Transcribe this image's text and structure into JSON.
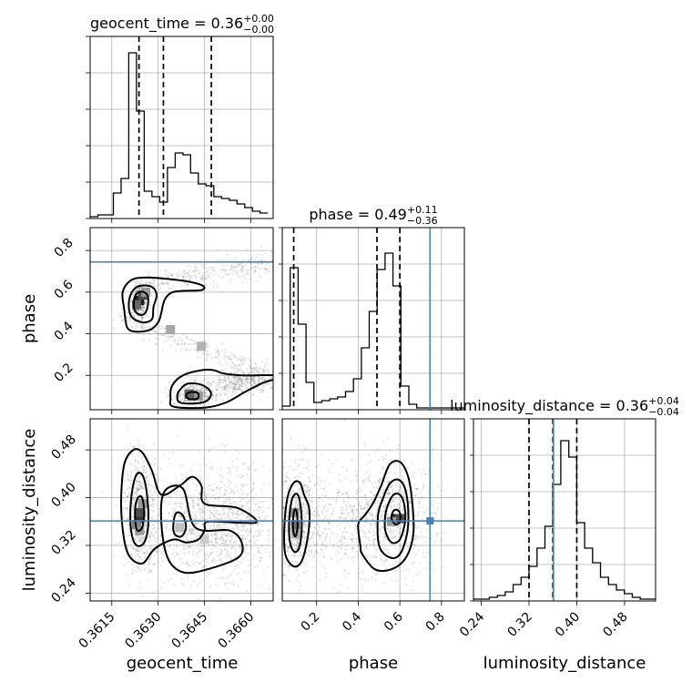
{
  "chart_data": {
    "type": "corner",
    "params": [
      "geocent_time",
      "phase",
      "luminosity_distance"
    ],
    "axis_labels": [
      "geocent_time",
      "phase",
      "luminosity_distance"
    ],
    "ranges": {
      "geocent_time": [
        0.3608,
        0.36672
      ],
      "phase": [
        0.035,
        0.91
      ],
      "luminosity_distance": [
        0.227,
        0.532
      ]
    },
    "ticks": {
      "geocent_time": [
        "0.3615",
        "0.3630",
        "0.3645",
        "0.3660"
      ],
      "phase": [
        "0.2",
        "0.4",
        "0.6",
        "0.8"
      ],
      "luminosity_distance": [
        "0.24",
        "0.32",
        "0.40",
        "0.48"
      ]
    },
    "titles": [
      {
        "param": "geocent_time",
        "prefix": "geocent_time = ",
        "median": "0.36",
        "plus": "+0.00",
        "minus": "−0.00"
      },
      {
        "param": "phase",
        "prefix": "phase = ",
        "median": "0.49",
        "plus": "+0.11",
        "minus": "−0.36"
      },
      {
        "param": "luminosity_distance",
        "prefix": "luminosity_distance = ",
        "median": "0.36",
        "plus": "+0.04",
        "minus": "−0.04"
      }
    ],
    "quantiles": {
      "geocent_time": [
        0.36238,
        0.36317,
        0.36472
      ],
      "phase": [
        0.09,
        0.49,
        0.6
      ],
      "luminosity_distance": [
        0.32,
        0.36,
        0.4
      ]
    },
    "truths": {
      "phase": 0.745,
      "luminosity_distance": 0.361
    },
    "histograms": {
      "geocent_time": {
        "edges_start": 0.3608,
        "bin_width": 0.00025,
        "counts": [
          0.01,
          0.02,
          0.02,
          0.14,
          0.22,
          0.91,
          0.59,
          0.15,
          0.12,
          0.09,
          0.28,
          0.36,
          0.35,
          0.25,
          0.19,
          0.18,
          0.12,
          0.11,
          0.1,
          0.08,
          0.06,
          0.04,
          0.03
        ]
      },
      "phase": {
        "edges_start": 0.035,
        "bin_width": 0.038,
        "counts": [
          0.02,
          0.78,
          0.47,
          0.15,
          0.04,
          0.05,
          0.06,
          0.07,
          0.1,
          0.17,
          0.34,
          0.54,
          0.77,
          0.86,
          0.68,
          0.13,
          0.03,
          0.01,
          0.01,
          0.01,
          0.01,
          0.01,
          0.01
        ]
      },
      "luminosity_distance": {
        "edges_start": 0.227,
        "bin_width": 0.0133,
        "counts": [
          0.01,
          0.01,
          0.02,
          0.03,
          0.05,
          0.09,
          0.13,
          0.19,
          0.29,
          0.41,
          0.64,
          0.88,
          0.79,
          0.43,
          0.29,
          0.21,
          0.13,
          0.09,
          0.06,
          0.04,
          0.02,
          0.01,
          0.01
        ]
      }
    },
    "contours_2d": {
      "phase_vs_geocent_time": [
        [
          [
            0.36225,
            0.51
          ],
          [
            0.36245,
            0.49
          ],
          [
            0.36262,
            0.51
          ],
          [
            0.36268,
            0.57
          ],
          [
            0.36255,
            0.6
          ],
          [
            0.36232,
            0.595
          ],
          [
            0.36222,
            0.56
          ]
        ],
        [
          [
            0.36215,
            0.48
          ],
          [
            0.3625,
            0.455
          ],
          [
            0.3628,
            0.47
          ],
          [
            0.36285,
            0.53
          ],
          [
            0.36295,
            0.585
          ],
          [
            0.3628,
            0.625
          ],
          [
            0.3624,
            0.63
          ],
          [
            0.36215,
            0.6
          ],
          [
            0.36205,
            0.54
          ]
        ],
        [
          [
            0.362,
            0.43
          ],
          [
            0.3623,
            0.41
          ],
          [
            0.36275,
            0.42
          ],
          [
            0.363,
            0.455
          ],
          [
            0.3631,
            0.5
          ],
          [
            0.3632,
            0.56
          ],
          [
            0.3634,
            0.595
          ],
          [
            0.3637,
            0.605
          ],
          [
            0.3644,
            0.61
          ],
          [
            0.36445,
            0.63
          ],
          [
            0.364,
            0.65
          ],
          [
            0.3632,
            0.665
          ],
          [
            0.3625,
            0.67
          ],
          [
            0.3621,
            0.655
          ],
          [
            0.36185,
            0.6
          ],
          [
            0.3619,
            0.52
          ]
        ],
        [
          [
            0.36392,
            0.095
          ],
          [
            0.36405,
            0.085
          ],
          [
            0.36428,
            0.09
          ],
          [
            0.36428,
            0.115
          ],
          [
            0.36405,
            0.12
          ],
          [
            0.36392,
            0.11
          ]
        ],
        [
          [
            0.3637,
            0.07
          ],
          [
            0.3642,
            0.065
          ],
          [
            0.3646,
            0.08
          ],
          [
            0.3647,
            0.12
          ],
          [
            0.3644,
            0.155
          ],
          [
            0.36395,
            0.16
          ],
          [
            0.3637,
            0.13
          ],
          [
            0.36362,
            0.1
          ]
        ],
        [
          [
            0.3635,
            0.05
          ],
          [
            0.3645,
            0.045
          ],
          [
            0.3652,
            0.07
          ],
          [
            0.3658,
            0.12
          ],
          [
            0.3664,
            0.165
          ],
          [
            0.36672,
            0.18
          ],
          [
            0.36672,
            0.2
          ],
          [
            0.3657,
            0.2
          ],
          [
            0.3651,
            0.21
          ],
          [
            0.3648,
            0.225
          ],
          [
            0.3644,
            0.225
          ],
          [
            0.3638,
            0.2
          ],
          [
            0.36345,
            0.15
          ],
          [
            0.3634,
            0.09
          ]
        ]
      ],
      "luminosity_distance_vs_geocent_time": [
        [
          [
            0.36226,
            0.36
          ],
          [
            0.36233,
            0.345
          ],
          [
            0.36248,
            0.35
          ],
          [
            0.36255,
            0.375
          ],
          [
            0.36248,
            0.4
          ],
          [
            0.36235,
            0.4
          ],
          [
            0.36226,
            0.385
          ]
        ],
        [
          [
            0.36214,
            0.34
          ],
          [
            0.3623,
            0.32
          ],
          [
            0.36255,
            0.325
          ],
          [
            0.36268,
            0.355
          ],
          [
            0.36265,
            0.4
          ],
          [
            0.36252,
            0.435
          ],
          [
            0.36232,
            0.44
          ],
          [
            0.36217,
            0.415
          ],
          [
            0.3621,
            0.375
          ]
        ],
        [
          [
            0.3621,
            0.3
          ],
          [
            0.3625,
            0.29
          ],
          [
            0.3629,
            0.315
          ],
          [
            0.3635,
            0.33
          ],
          [
            0.3639,
            0.325
          ],
          [
            0.3643,
            0.33
          ],
          [
            0.3645,
            0.345
          ],
          [
            0.3646,
            0.36
          ],
          [
            0.3656,
            0.358
          ],
          [
            0.3662,
            0.36
          ],
          [
            0.36555,
            0.383
          ],
          [
            0.3645,
            0.39
          ],
          [
            0.3644,
            0.42
          ],
          [
            0.3641,
            0.435
          ],
          [
            0.3637,
            0.42
          ],
          [
            0.3631,
            0.405
          ],
          [
            0.3628,
            0.445
          ],
          [
            0.3625,
            0.475
          ],
          [
            0.3622,
            0.48
          ],
          [
            0.3619,
            0.455
          ],
          [
            0.3618,
            0.39
          ],
          [
            0.3619,
            0.33
          ]
        ],
        [
          [
            0.36352,
            0.34
          ],
          [
            0.36375,
            0.335
          ],
          [
            0.3639,
            0.35
          ],
          [
            0.3638,
            0.37
          ],
          [
            0.3636,
            0.375
          ],
          [
            0.3635,
            0.36
          ]
        ],
        [
          [
            0.3633,
            0.3
          ],
          [
            0.3638,
            0.275
          ],
          [
            0.3646,
            0.28
          ],
          [
            0.3656,
            0.3
          ],
          [
            0.3657,
            0.325
          ],
          [
            0.3653,
            0.345
          ],
          [
            0.3642,
            0.35
          ],
          [
            0.3638,
            0.415
          ],
          [
            0.3632,
            0.41
          ],
          [
            0.3631,
            0.36
          ]
        ]
      ],
      "luminosity_distance_vs_phase": [
        [
          [
            0.088,
            0.345
          ],
          [
            0.098,
            0.335
          ],
          [
            0.108,
            0.35
          ],
          [
            0.105,
            0.375
          ],
          [
            0.095,
            0.38
          ],
          [
            0.087,
            0.365
          ]
        ],
        [
          [
            0.07,
            0.33
          ],
          [
            0.09,
            0.31
          ],
          [
            0.115,
            0.315
          ],
          [
            0.128,
            0.345
          ],
          [
            0.125,
            0.38
          ],
          [
            0.11,
            0.405
          ],
          [
            0.085,
            0.4
          ],
          [
            0.07,
            0.37
          ]
        ],
        [
          [
            0.05,
            0.305
          ],
          [
            0.09,
            0.285
          ],
          [
            0.13,
            0.295
          ],
          [
            0.16,
            0.34
          ],
          [
            0.165,
            0.38
          ],
          [
            0.14,
            0.405
          ],
          [
            0.12,
            0.425
          ],
          [
            0.09,
            0.425
          ],
          [
            0.06,
            0.4
          ],
          [
            0.045,
            0.35
          ]
        ],
        [
          [
            0.56,
            0.365
          ],
          [
            0.58,
            0.355
          ],
          [
            0.6,
            0.36
          ],
          [
            0.6,
            0.375
          ],
          [
            0.58,
            0.38
          ],
          [
            0.565,
            0.375
          ]
        ],
        [
          [
            0.53,
            0.345
          ],
          [
            0.56,
            0.325
          ],
          [
            0.6,
            0.33
          ],
          [
            0.625,
            0.36
          ],
          [
            0.62,
            0.39
          ],
          [
            0.6,
            0.405
          ],
          [
            0.57,
            0.405
          ],
          [
            0.545,
            0.39
          ],
          [
            0.53,
            0.37
          ]
        ],
        [
          [
            0.5,
            0.32
          ],
          [
            0.55,
            0.3
          ],
          [
            0.6,
            0.305
          ],
          [
            0.635,
            0.34
          ],
          [
            0.64,
            0.38
          ],
          [
            0.625,
            0.415
          ],
          [
            0.595,
            0.43
          ],
          [
            0.555,
            0.425
          ],
          [
            0.52,
            0.4
          ],
          [
            0.495,
            0.37
          ]
        ],
        [
          [
            0.42,
            0.305
          ],
          [
            0.48,
            0.28
          ],
          [
            0.56,
            0.28
          ],
          [
            0.63,
            0.3
          ],
          [
            0.665,
            0.34
          ],
          [
            0.66,
            0.39
          ],
          [
            0.64,
            0.435
          ],
          [
            0.6,
            0.46
          ],
          [
            0.55,
            0.455
          ],
          [
            0.51,
            0.42
          ],
          [
            0.47,
            0.39
          ],
          [
            0.43,
            0.37
          ],
          [
            0.4,
            0.355
          ],
          [
            0.41,
            0.32
          ]
        ]
      ]
    },
    "density_2d": {
      "phase_vs_geocent_time": [
        [
          0.3624,
          0.56,
          0.9
        ],
        [
          0.3625,
          0.585,
          0.7
        ],
        [
          0.3623,
          0.54,
          0.6
        ],
        [
          0.3626,
          0.6,
          0.4
        ],
        [
          0.3641,
          0.103,
          0.9
        ],
        [
          0.364,
          0.11,
          0.6
        ],
        [
          0.3643,
          0.1,
          0.4
        ],
        [
          0.3634,
          0.42,
          0.35
        ],
        [
          0.3644,
          0.34,
          0.3
        ]
      ],
      "luminosity_distance_vs_geocent_time": [
        [
          0.3624,
          0.365,
          0.8
        ],
        [
          0.3624,
          0.375,
          0.7
        ],
        [
          0.3623,
          0.355,
          0.5
        ],
        [
          0.3625,
          0.39,
          0.4
        ],
        [
          0.3624,
          0.345,
          0.4
        ],
        [
          0.3637,
          0.35,
          0.25
        ],
        [
          0.3645,
          0.33,
          0.2
        ]
      ],
      "luminosity_distance_vs_phase": [
        [
          0.58,
          0.365,
          0.85
        ],
        [
          0.6,
          0.365,
          0.7
        ],
        [
          0.56,
          0.36,
          0.4
        ],
        [
          0.1,
          0.355,
          0.55
        ],
        [
          0.095,
          0.375,
          0.4
        ],
        [
          0.1,
          0.34,
          0.35
        ]
      ]
    }
  }
}
